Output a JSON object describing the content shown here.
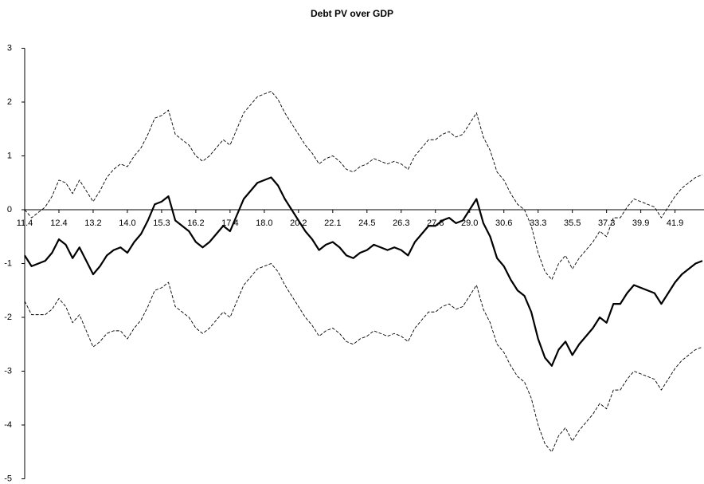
{
  "chart_data": {
    "type": "line",
    "title": "Debt PV over GDP",
    "categories": [
      "11.4",
      null,
      null,
      null,
      null,
      "12.4",
      null,
      null,
      null,
      null,
      "13.2",
      null,
      null,
      null,
      null,
      "14.0",
      null,
      null,
      null,
      null,
      "15.3",
      null,
      null,
      null,
      null,
      "16.2",
      null,
      null,
      null,
      null,
      "17.4",
      null,
      null,
      null,
      null,
      "18.0",
      null,
      null,
      null,
      null,
      "20.2",
      null,
      null,
      null,
      null,
      "22.1",
      null,
      null,
      null,
      null,
      "24.5",
      null,
      null,
      null,
      null,
      "26.3",
      null,
      null,
      null,
      null,
      "27.8",
      null,
      null,
      null,
      null,
      "29.0",
      null,
      null,
      null,
      null,
      "30.6",
      null,
      null,
      null,
      null,
      "33.3",
      null,
      null,
      null,
      null,
      "35.5",
      null,
      null,
      null,
      null,
      "37.3",
      null,
      null,
      null,
      null,
      "39.9",
      null,
      null,
      null,
      null,
      "41.9",
      null,
      null,
      null,
      null
    ],
    "series": [
      {
        "color": "#000000",
        "line_style": "dashed",
        "values": [
          0.0,
          -0.15,
          -0.05,
          0.05,
          0.25,
          0.55,
          0.5,
          0.3,
          0.55,
          0.35,
          0.15,
          0.35,
          0.6,
          0.75,
          0.85,
          0.8,
          1.0,
          1.15,
          1.4,
          1.7,
          1.75,
          1.85,
          1.4,
          1.3,
          1.2,
          1.0,
          0.9,
          1.0,
          1.15,
          1.3,
          1.2,
          1.5,
          1.8,
          1.95,
          2.1,
          2.15,
          2.2,
          2.05,
          1.8,
          1.6,
          1.4,
          1.2,
          1.05,
          0.85,
          0.95,
          1.0,
          0.9,
          0.75,
          0.7,
          0.8,
          0.85,
          0.95,
          0.9,
          0.85,
          0.9,
          0.85,
          0.75,
          1.0,
          1.15,
          1.3,
          1.3,
          1.4,
          1.45,
          1.35,
          1.4,
          1.6,
          1.8,
          1.35,
          1.1,
          0.7,
          0.55,
          0.3,
          0.1,
          0.0,
          -0.3,
          -0.8,
          -1.15,
          -1.3,
          -1.0,
          -0.85,
          -1.1,
          -0.9,
          -0.75,
          -0.6,
          -0.4,
          -0.5,
          -0.15,
          -0.15,
          0.05,
          0.2,
          0.15,
          0.1,
          0.05,
          -0.15,
          0.05,
          0.25,
          0.4,
          0.5,
          0.6,
          0.65
        ]
      },
      {
        "color": "#000000",
        "line_style": "solid",
        "values": [
          -0.85,
          -1.05,
          -1.0,
          -0.95,
          -0.8,
          -0.55,
          -0.65,
          -0.9,
          -0.7,
          -0.95,
          -1.2,
          -1.05,
          -0.85,
          -0.75,
          -0.7,
          -0.8,
          -0.6,
          -0.45,
          -0.2,
          0.1,
          0.15,
          0.25,
          -0.2,
          -0.3,
          -0.4,
          -0.6,
          -0.7,
          -0.6,
          -0.45,
          -0.3,
          -0.4,
          -0.1,
          0.2,
          0.35,
          0.5,
          0.55,
          0.6,
          0.45,
          0.2,
          0.0,
          -0.2,
          -0.4,
          -0.55,
          -0.75,
          -0.65,
          -0.6,
          -0.7,
          -0.85,
          -0.9,
          -0.8,
          -0.75,
          -0.65,
          -0.7,
          -0.75,
          -0.7,
          -0.75,
          -0.85,
          -0.6,
          -0.45,
          -0.3,
          -0.3,
          -0.2,
          -0.15,
          -0.25,
          -0.2,
          0.0,
          0.2,
          -0.25,
          -0.5,
          -0.9,
          -1.05,
          -1.3,
          -1.5,
          -1.6,
          -1.9,
          -2.4,
          -2.75,
          -2.9,
          -2.6,
          -2.45,
          -2.7,
          -2.5,
          -2.35,
          -2.2,
          -2.0,
          -2.1,
          -1.75,
          -1.75,
          -1.55,
          -1.4,
          -1.45,
          -1.5,
          -1.55,
          -1.75,
          -1.55,
          -1.35,
          -1.2,
          -1.1,
          -1.0,
          -0.95
        ]
      },
      {
        "color": "#000000",
        "line_style": "dashed",
        "values": [
          -1.7,
          -1.95,
          -1.95,
          -1.95,
          -1.85,
          -1.65,
          -1.8,
          -2.1,
          -1.95,
          -2.25,
          -2.55,
          -2.45,
          -2.3,
          -2.25,
          -2.25,
          -2.4,
          -2.2,
          -2.05,
          -1.8,
          -1.5,
          -1.45,
          -1.35,
          -1.8,
          -1.9,
          -2.0,
          -2.2,
          -2.3,
          -2.2,
          -2.05,
          -1.9,
          -2.0,
          -1.7,
          -1.4,
          -1.25,
          -1.1,
          -1.05,
          -1.0,
          -1.15,
          -1.4,
          -1.6,
          -1.8,
          -2.0,
          -2.15,
          -2.35,
          -2.25,
          -2.2,
          -2.3,
          -2.45,
          -2.5,
          -2.4,
          -2.35,
          -2.25,
          -2.3,
          -2.35,
          -2.3,
          -2.35,
          -2.45,
          -2.2,
          -2.05,
          -1.9,
          -1.9,
          -1.8,
          -1.75,
          -1.85,
          -1.8,
          -1.6,
          -1.4,
          -1.85,
          -2.1,
          -2.5,
          -2.65,
          -2.9,
          -3.1,
          -3.2,
          -3.5,
          -4.0,
          -4.35,
          -4.5,
          -4.2,
          -4.05,
          -4.3,
          -4.1,
          -3.95,
          -3.8,
          -3.6,
          -3.7,
          -3.35,
          -3.35,
          -3.15,
          -3.0,
          -3.05,
          -3.1,
          -3.15,
          -3.35,
          -3.15,
          -2.95,
          -2.8,
          -2.7,
          -2.6,
          -2.55
        ]
      }
    ],
    "ylim": [
      -5,
      3
    ],
    "yticks": [
      -5,
      -4,
      -3,
      -2,
      -1,
      0,
      1,
      2,
      3
    ]
  }
}
